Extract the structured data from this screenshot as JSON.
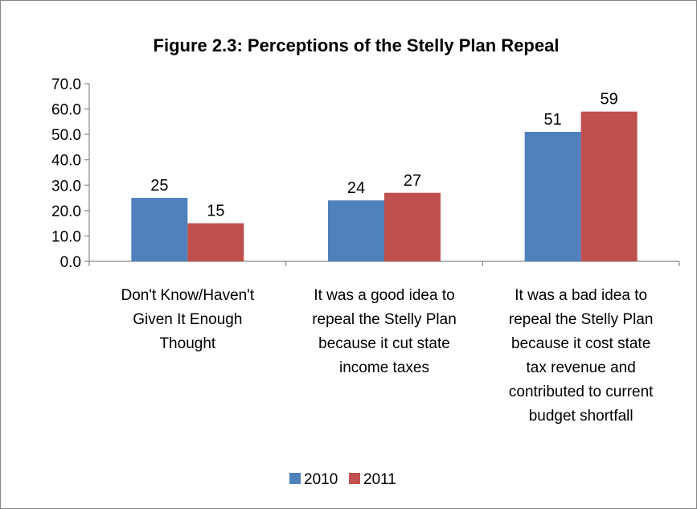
{
  "chart_data": {
    "type": "bar",
    "title": "Figure 2.3: Perceptions of the Stelly Plan Repeal",
    "xlabel": "",
    "ylabel": "",
    "ylim": [
      0,
      70
    ],
    "yticks": [
      "0.0",
      "10.0",
      "20.0",
      "30.0",
      "40.0",
      "50.0",
      "60.0",
      "70.0"
    ],
    "grid": false,
    "legend_position": "bottom",
    "categories": [
      [
        "Don't Know/Haven't",
        "Given It Enough",
        "Thought"
      ],
      [
        "It was a good idea to",
        "repeal the Stelly Plan",
        "because it cut state",
        "income taxes"
      ],
      [
        "It was a bad idea to",
        "repeal the Stelly Plan",
        "because it cost state",
        "tax revenue and",
        "contributed to current",
        "budget shortfall"
      ]
    ],
    "series": [
      {
        "name": "2010",
        "color": "#4F81BD",
        "values": [
          25,
          24,
          51
        ],
        "labels": [
          "25",
          "24",
          "51"
        ]
      },
      {
        "name": "2011",
        "color": "#C0504D",
        "values": [
          15,
          27,
          59
        ],
        "labels": [
          "15",
          "27",
          "59"
        ]
      }
    ]
  }
}
